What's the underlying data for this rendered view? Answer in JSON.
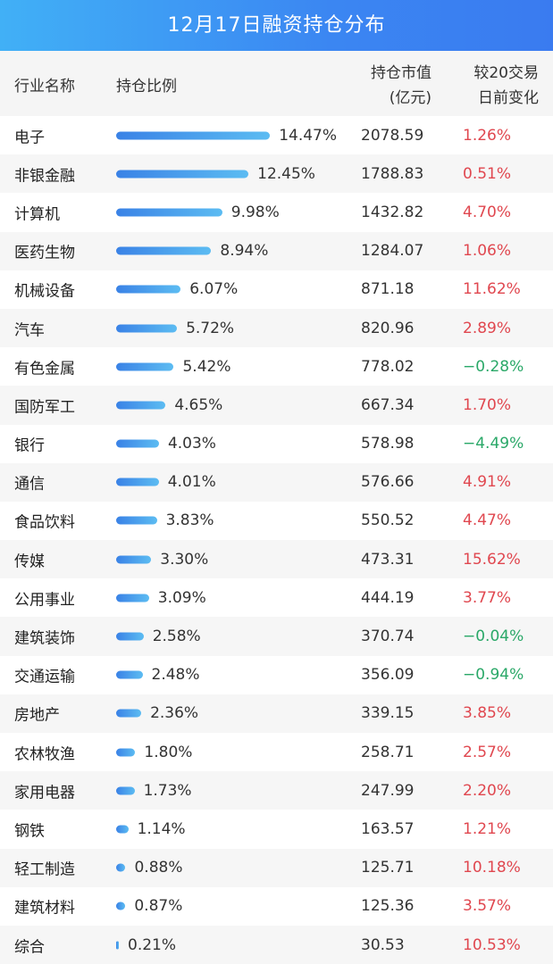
{
  "title": "12月17日融资持仓分布",
  "headers": {
    "industry": "行业名称",
    "ratio": "持仓比例",
    "value_line1": "持仓市值",
    "value_line2": "(亿元)",
    "change_line1": "较20交易",
    "change_line2": "日前变化"
  },
  "colors": {
    "up": "#e0474f",
    "down": "#2aa868",
    "bar": "#3a82e6"
  },
  "chart_data": {
    "type": "table",
    "title": "12月17日融资持仓分布",
    "columns": [
      "行业名称",
      "持仓比例",
      "持仓市值(亿元)",
      "较20交易日前变化"
    ],
    "rows": [
      {
        "name": "电子",
        "ratio": 14.47,
        "ratio_text": "14.47%",
        "value": "2078.59",
        "change": "1.26%"
      },
      {
        "name": "非银金融",
        "ratio": 12.45,
        "ratio_text": "12.45%",
        "value": "1788.83",
        "change": "0.51%"
      },
      {
        "name": "计算机",
        "ratio": 9.98,
        "ratio_text": "9.98%",
        "value": "1432.82",
        "change": "4.70%"
      },
      {
        "name": "医药生物",
        "ratio": 8.94,
        "ratio_text": "8.94%",
        "value": "1284.07",
        "change": "1.06%"
      },
      {
        "name": "机械设备",
        "ratio": 6.07,
        "ratio_text": "6.07%",
        "value": "871.18",
        "change": "11.62%"
      },
      {
        "name": "汽车",
        "ratio": 5.72,
        "ratio_text": "5.72%",
        "value": "820.96",
        "change": "2.89%"
      },
      {
        "name": "有色金属",
        "ratio": 5.42,
        "ratio_text": "5.42%",
        "value": "778.02",
        "change": "−0.28%"
      },
      {
        "name": "国防军工",
        "ratio": 4.65,
        "ratio_text": "4.65%",
        "value": "667.34",
        "change": "1.70%"
      },
      {
        "name": "银行",
        "ratio": 4.03,
        "ratio_text": "4.03%",
        "value": "578.98",
        "change": "−4.49%"
      },
      {
        "name": "通信",
        "ratio": 4.01,
        "ratio_text": "4.01%",
        "value": "576.66",
        "change": "4.91%"
      },
      {
        "name": "食品饮料",
        "ratio": 3.83,
        "ratio_text": "3.83%",
        "value": "550.52",
        "change": "4.47%"
      },
      {
        "name": "传媒",
        "ratio": 3.3,
        "ratio_text": "3.30%",
        "value": "473.31",
        "change": "15.62%"
      },
      {
        "name": "公用事业",
        "ratio": 3.09,
        "ratio_text": "3.09%",
        "value": "444.19",
        "change": "3.77%"
      },
      {
        "name": "建筑装饰",
        "ratio": 2.58,
        "ratio_text": "2.58%",
        "value": "370.74",
        "change": "−0.04%"
      },
      {
        "name": "交通运输",
        "ratio": 2.48,
        "ratio_text": "2.48%",
        "value": "356.09",
        "change": "−0.94%"
      },
      {
        "name": "房地产",
        "ratio": 2.36,
        "ratio_text": "2.36%",
        "value": "339.15",
        "change": "3.85%"
      },
      {
        "name": "农林牧渔",
        "ratio": 1.8,
        "ratio_text": "1.80%",
        "value": "258.71",
        "change": "2.57%"
      },
      {
        "name": "家用电器",
        "ratio": 1.73,
        "ratio_text": "1.73%",
        "value": "247.99",
        "change": "2.20%"
      },
      {
        "name": "钢铁",
        "ratio": 1.14,
        "ratio_text": "1.14%",
        "value": "163.57",
        "change": "1.21%"
      },
      {
        "name": "轻工制造",
        "ratio": 0.88,
        "ratio_text": "0.88%",
        "value": "125.71",
        "change": "10.18%"
      },
      {
        "name": "建筑材料",
        "ratio": 0.87,
        "ratio_text": "0.87%",
        "value": "125.36",
        "change": "3.57%"
      },
      {
        "name": "综合",
        "ratio": 0.21,
        "ratio_text": "0.21%",
        "value": "30.53",
        "change": "10.53%"
      }
    ]
  }
}
